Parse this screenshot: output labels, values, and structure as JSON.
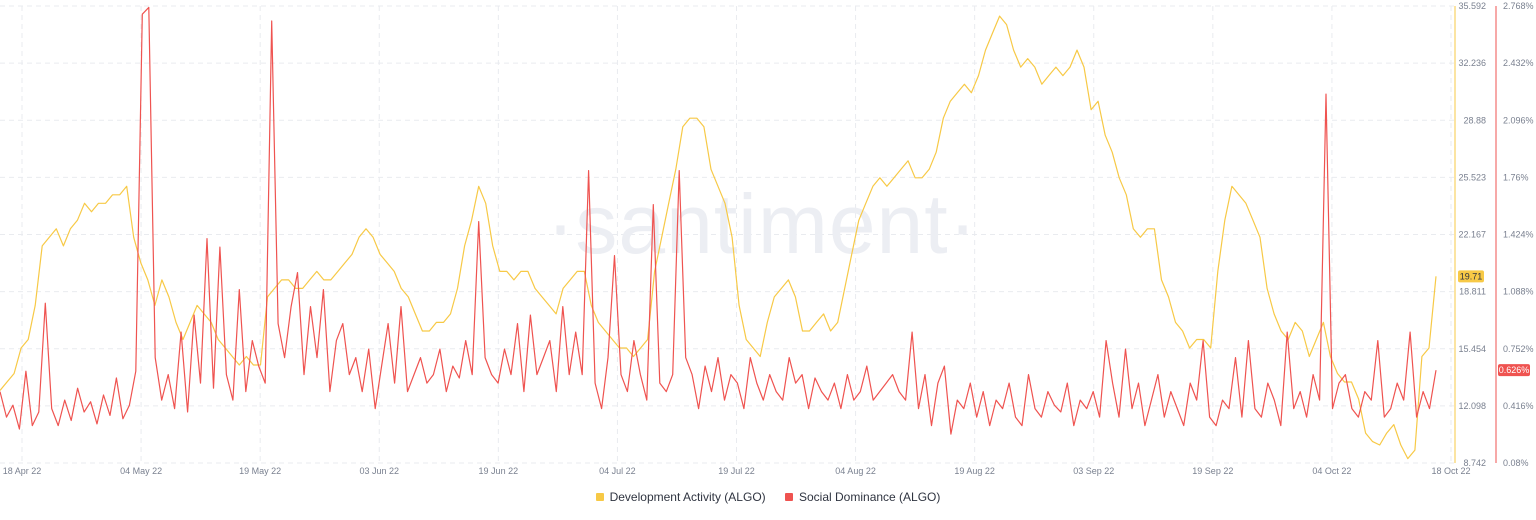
{
  "colors": {
    "dev": "#f7c946",
    "social": "#ef5350",
    "grid": "#e9ebef",
    "badge_dev_bg": "#f7c946",
    "badge_social_bg": "#ef5350"
  },
  "watermark": "·santiment·",
  "legend": [
    {
      "name": "Development Activity (ALGO)",
      "color": "#f7c946"
    },
    {
      "name": "Social Dominance (ALGO)",
      "color": "#ef5350"
    }
  ],
  "badges": {
    "dev_last": "19.71",
    "social_last": "0.626%"
  },
  "chart_data": {
    "type": "line",
    "x_ticks": [
      "18 Apr 22",
      "04 May 22",
      "19 May 22",
      "03 Jun 22",
      "19 Jun 22",
      "04 Jul 22",
      "19 Jul 22",
      "04 Aug 22",
      "19 Aug 22",
      "03 Sep 22",
      "19 Sep 22",
      "04 Oct 22",
      "18 Oct 22"
    ],
    "y_left_ticks": [
      "35.592",
      "32.236",
      "28.88",
      "25.523",
      "22.167",
      "18.811",
      "15.454",
      "12.098",
      "8.742"
    ],
    "y_left_range": [
      8.742,
      35.592
    ],
    "y_right_ticks": [
      "2.768%",
      "2.432%",
      "2.096%",
      "1.76%",
      "1.424%",
      "1.088%",
      "0.752%",
      "0.416%",
      "0.08%"
    ],
    "y_right_range": [
      0.08,
      2.768
    ],
    "grid": true,
    "legend_position": "bottom",
    "series": [
      {
        "name": "Development Activity (ALGO)",
        "axis": "left",
        "values": [
          13.0,
          13.5,
          14.0,
          15.5,
          16.0,
          18.0,
          21.5,
          22.0,
          22.5,
          21.5,
          22.5,
          23.0,
          24.0,
          23.5,
          24.0,
          24.0,
          24.5,
          24.5,
          25.0,
          22.0,
          20.5,
          19.5,
          18.0,
          19.5,
          18.5,
          17.0,
          16.0,
          17.0,
          18.0,
          17.5,
          17.0,
          16.0,
          15.5,
          15.0,
          14.5,
          15.0,
          14.5,
          14.5,
          18.5,
          19.0,
          19.5,
          19.5,
          19.0,
          19.0,
          19.5,
          20.0,
          19.5,
          19.5,
          20.0,
          20.5,
          21.0,
          22.0,
          22.5,
          22.0,
          21.0,
          20.5,
          20.0,
          19.0,
          18.5,
          17.5,
          16.5,
          16.5,
          17.0,
          17.0,
          17.5,
          19.0,
          21.5,
          23.0,
          25.0,
          24.0,
          21.5,
          20.0,
          20.0,
          19.5,
          20.0,
          20.0,
          19.0,
          18.5,
          18.0,
          17.5,
          19.0,
          19.5,
          20.0,
          20.0,
          18.0,
          17.0,
          16.5,
          16.0,
          15.5,
          15.5,
          15.0,
          15.5,
          16.0,
          20.0,
          22.0,
          24.0,
          26.0,
          28.5,
          29.0,
          29.0,
          28.5,
          26.0,
          25.0,
          24.0,
          22.0,
          18.0,
          16.0,
          15.5,
          15.0,
          17.0,
          18.5,
          19.0,
          19.5,
          18.5,
          16.5,
          16.5,
          17.0,
          17.5,
          16.5,
          17.0,
          19.0,
          21.0,
          23.0,
          24.0,
          25.0,
          25.5,
          25.0,
          25.5,
          26.0,
          26.5,
          25.5,
          25.5,
          26.0,
          27.0,
          29.0,
          30.0,
          30.5,
          31.0,
          30.5,
          31.5,
          33.0,
          34.0,
          35.0,
          34.5,
          33.0,
          32.0,
          32.5,
          32.0,
          31.0,
          31.5,
          32.0,
          31.5,
          32.0,
          33.0,
          32.0,
          29.5,
          30.0,
          28.0,
          27.0,
          25.5,
          24.5,
          22.5,
          22.0,
          22.5,
          22.5,
          19.5,
          18.5,
          17.0,
          16.5,
          15.5,
          16.0,
          16.0,
          15.5,
          20.0,
          23.0,
          25.0,
          24.5,
          24.0,
          23.0,
          22.0,
          19.0,
          17.5,
          16.5,
          16.0,
          17.0,
          16.5,
          15.0,
          16.0,
          17.0,
          15.0,
          14.0,
          13.5,
          13.5,
          12.5,
          10.5,
          10.0,
          9.8,
          10.5,
          11.0,
          9.8,
          9.0,
          9.5,
          15.0,
          15.5,
          19.71
        ]
      },
      {
        "name": "Social Dominance (ALGO)",
        "axis": "right",
        "values": [
          0.5,
          0.35,
          0.42,
          0.28,
          0.62,
          0.3,
          0.38,
          1.02,
          0.4,
          0.3,
          0.45,
          0.33,
          0.52,
          0.38,
          0.44,
          0.31,
          0.48,
          0.36,
          0.58,
          0.34,
          0.42,
          0.62,
          2.72,
          2.76,
          0.7,
          0.45,
          0.6,
          0.4,
          0.85,
          0.38,
          0.95,
          0.55,
          1.4,
          0.52,
          1.35,
          0.6,
          0.45,
          1.1,
          0.5,
          0.8,
          0.65,
          0.55,
          2.68,
          0.9,
          0.7,
          1.0,
          1.2,
          0.6,
          1.0,
          0.7,
          1.1,
          0.5,
          0.8,
          0.9,
          0.6,
          0.7,
          0.5,
          0.75,
          0.4,
          0.65,
          0.9,
          0.55,
          1.0,
          0.5,
          0.6,
          0.7,
          0.55,
          0.6,
          0.75,
          0.5,
          0.65,
          0.58,
          0.8,
          0.6,
          1.5,
          0.7,
          0.6,
          0.55,
          0.75,
          0.6,
          0.9,
          0.5,
          0.95,
          0.6,
          0.7,
          0.8,
          0.5,
          1.0,
          0.6,
          0.85,
          0.6,
          1.8,
          0.55,
          0.4,
          0.7,
          1.3,
          0.6,
          0.5,
          0.8,
          0.6,
          0.45,
          1.6,
          0.55,
          0.5,
          0.6,
          1.8,
          0.7,
          0.6,
          0.4,
          0.65,
          0.5,
          0.7,
          0.45,
          0.6,
          0.55,
          0.4,
          0.7,
          0.55,
          0.45,
          0.6,
          0.5,
          0.45,
          0.7,
          0.55,
          0.6,
          0.4,
          0.58,
          0.5,
          0.45,
          0.55,
          0.4,
          0.6,
          0.45,
          0.5,
          0.65,
          0.45,
          0.5,
          0.55,
          0.6,
          0.5,
          0.45,
          0.85,
          0.4,
          0.6,
          0.3,
          0.55,
          0.65,
          0.25,
          0.45,
          0.4,
          0.55,
          0.35,
          0.5,
          0.3,
          0.45,
          0.4,
          0.55,
          0.35,
          0.3,
          0.6,
          0.4,
          0.35,
          0.5,
          0.42,
          0.38,
          0.55,
          0.3,
          0.45,
          0.4,
          0.5,
          0.35,
          0.8,
          0.55,
          0.35,
          0.75,
          0.4,
          0.55,
          0.3,
          0.45,
          0.6,
          0.35,
          0.5,
          0.4,
          0.3,
          0.55,
          0.45,
          0.8,
          0.35,
          0.3,
          0.45,
          0.4,
          0.7,
          0.35,
          0.8,
          0.4,
          0.35,
          0.55,
          0.45,
          0.3,
          0.85,
          0.4,
          0.5,
          0.35,
          0.6,
          0.45,
          2.25,
          0.4,
          0.55,
          0.6,
          0.4,
          0.35,
          0.5,
          0.45,
          0.8,
          0.35,
          0.4,
          0.55,
          0.45,
          0.85,
          0.35,
          0.5,
          0.4,
          0.626
        ]
      }
    ]
  }
}
